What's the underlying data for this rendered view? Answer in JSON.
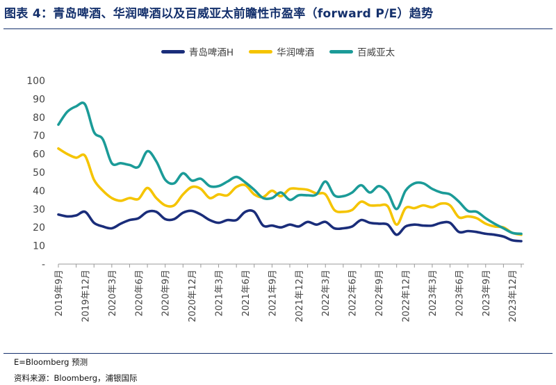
{
  "title": "图表 4：青岛啤酒、华润啤酒以及百威亚太前瞻性市盈率（forward P/E）趋势",
  "notes": {
    "forecast": "E=Bloomberg 预测",
    "source": "资料来源：Bloomberg，浦银国际"
  },
  "chart_data": {
    "type": "line",
    "ylim": [
      0,
      100
    ],
    "yticks": [
      "-",
      "10",
      "20",
      "30",
      "40",
      "50",
      "60",
      "70",
      "80",
      "90",
      "100"
    ],
    "xticks": [
      "2019年9月",
      "2019年12月",
      "2020年3月",
      "2020年6月",
      "2020年9月",
      "2020年12月",
      "2021年3月",
      "2021年6月",
      "2021年9月",
      "2021年12月",
      "2022年3月",
      "2022年6月",
      "2022年9月",
      "2022年12月",
      "2023年3月",
      "2023年6月",
      "2023年9月",
      "2023年12月"
    ],
    "legend_position": "top-center",
    "grid": false,
    "series": [
      {
        "name": "青岛啤酒H",
        "color": "#1a2d7a",
        "points": [
          [
            0,
            27
          ],
          [
            0.5,
            26
          ],
          [
            1,
            26.5
          ],
          [
            1.5,
            28.5
          ],
          [
            2,
            22.5
          ],
          [
            2.5,
            20.5
          ],
          [
            3,
            19.5
          ],
          [
            3.5,
            22
          ],
          [
            4,
            24
          ],
          [
            4.5,
            25
          ],
          [
            5,
            28.5
          ],
          [
            5.5,
            28.5
          ],
          [
            6,
            24.5
          ],
          [
            6.5,
            24.5
          ],
          [
            7,
            28
          ],
          [
            7.5,
            29
          ],
          [
            8,
            27
          ],
          [
            8.5,
            24
          ],
          [
            9,
            22.5
          ],
          [
            9.5,
            24
          ],
          [
            10,
            24
          ],
          [
            10.5,
            28.5
          ],
          [
            11,
            28.5
          ],
          [
            11.5,
            21
          ],
          [
            12,
            21
          ],
          [
            12.5,
            20
          ],
          [
            13,
            21.5
          ],
          [
            13.5,
            20.5
          ],
          [
            14,
            23
          ],
          [
            14.5,
            21.5
          ],
          [
            15,
            23
          ],
          [
            15.5,
            19.5
          ],
          [
            16,
            19.5
          ],
          [
            16.5,
            20.5
          ],
          [
            17,
            24
          ],
          [
            17.5,
            22.5
          ],
          [
            18,
            22
          ],
          [
            18.5,
            21.5
          ],
          [
            19,
            16
          ],
          [
            19.5,
            20.5
          ],
          [
            20,
            21.5
          ],
          [
            20.5,
            21
          ],
          [
            21,
            21
          ],
          [
            21.5,
            22.5
          ],
          [
            22,
            22.5
          ],
          [
            22.5,
            17.5
          ],
          [
            23,
            18
          ],
          [
            23.5,
            17.5
          ],
          [
            24,
            16.5
          ],
          [
            24.5,
            16
          ],
          [
            25,
            15
          ],
          [
            25.5,
            13
          ],
          [
            26,
            12.5
          ]
        ]
      },
      {
        "name": "华润啤酒",
        "color": "#f5c400",
        "points": [
          [
            0,
            63
          ],
          [
            0.5,
            60
          ],
          [
            1,
            58
          ],
          [
            1.5,
            59
          ],
          [
            2,
            46
          ],
          [
            2.5,
            40
          ],
          [
            3,
            36
          ],
          [
            3.5,
            34.5
          ],
          [
            4,
            36
          ],
          [
            4.5,
            35.5
          ],
          [
            5,
            41.5
          ],
          [
            5.5,
            36
          ],
          [
            6,
            32
          ],
          [
            6.5,
            32
          ],
          [
            7,
            38
          ],
          [
            7.5,
            42
          ],
          [
            8,
            41
          ],
          [
            8.5,
            36
          ],
          [
            9,
            38
          ],
          [
            9.5,
            37.5
          ],
          [
            10,
            42
          ],
          [
            10.5,
            43
          ],
          [
            11,
            38
          ],
          [
            11.5,
            36.5
          ],
          [
            12,
            40
          ],
          [
            12.5,
            37
          ],
          [
            13,
            41
          ],
          [
            13.5,
            41
          ],
          [
            14,
            40.5
          ],
          [
            14.5,
            38.5
          ],
          [
            15,
            38
          ],
          [
            15.5,
            29.5
          ],
          [
            16,
            28.5
          ],
          [
            16.5,
            29.5
          ],
          [
            17,
            34
          ],
          [
            17.5,
            32
          ],
          [
            18,
            32
          ],
          [
            18.5,
            31.5
          ],
          [
            19,
            21.5
          ],
          [
            19.5,
            30.5
          ],
          [
            20,
            30.5
          ],
          [
            20.5,
            32
          ],
          [
            21,
            31
          ],
          [
            21.5,
            33
          ],
          [
            22,
            32
          ],
          [
            22.5,
            25.5
          ],
          [
            23,
            26
          ],
          [
            23.5,
            25
          ],
          [
            24,
            22
          ],
          [
            24.5,
            20.5
          ],
          [
            25,
            20
          ],
          [
            25.5,
            17
          ],
          [
            26,
            16
          ]
        ]
      },
      {
        "name": "百威亚太",
        "color": "#1b9b98",
        "points": [
          [
            0,
            76
          ],
          [
            0.5,
            83
          ],
          [
            1,
            86
          ],
          [
            1.5,
            87
          ],
          [
            2,
            72
          ],
          [
            2.5,
            68
          ],
          [
            3,
            55
          ],
          [
            3.5,
            55
          ],
          [
            4,
            54
          ],
          [
            4.5,
            53
          ],
          [
            5,
            61.5
          ],
          [
            5.5,
            56
          ],
          [
            6,
            46
          ],
          [
            6.5,
            44
          ],
          [
            7,
            49.5
          ],
          [
            7.5,
            45.5
          ],
          [
            8,
            46.5
          ],
          [
            8.5,
            42.5
          ],
          [
            9,
            42.5
          ],
          [
            9.5,
            45
          ],
          [
            10,
            47.5
          ],
          [
            10.5,
            44.5
          ],
          [
            11,
            40.5
          ],
          [
            11.5,
            36
          ],
          [
            12,
            36
          ],
          [
            12.5,
            39
          ],
          [
            13,
            35
          ],
          [
            13.5,
            37.5
          ],
          [
            14,
            37.5
          ],
          [
            14.5,
            38
          ],
          [
            15,
            45
          ],
          [
            15.5,
            37.5
          ],
          [
            16,
            37
          ],
          [
            16.5,
            39
          ],
          [
            17,
            43
          ],
          [
            17.5,
            39
          ],
          [
            18,
            42.5
          ],
          [
            18.5,
            39
          ],
          [
            19,
            30
          ],
          [
            19.5,
            40
          ],
          [
            20,
            44
          ],
          [
            20.5,
            44
          ],
          [
            21,
            41
          ],
          [
            21.5,
            39
          ],
          [
            22,
            38
          ],
          [
            22.5,
            34
          ],
          [
            23,
            29
          ],
          [
            23.5,
            28.5
          ],
          [
            24,
            25
          ],
          [
            24.5,
            22
          ],
          [
            25,
            19.5
          ],
          [
            25.5,
            17
          ],
          [
            26,
            16.5
          ]
        ]
      }
    ]
  }
}
